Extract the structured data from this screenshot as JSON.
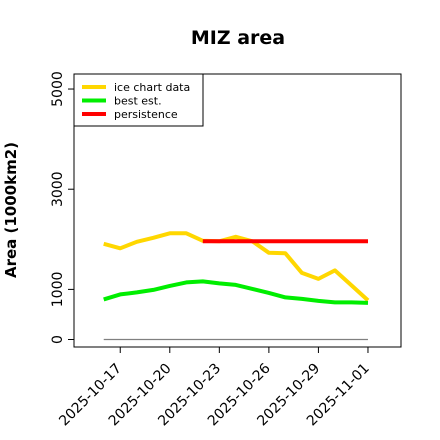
{
  "chart_data": {
    "type": "line",
    "title": "MIZ area",
    "ylabel": "Area (1000km2)",
    "xlabel": "",
    "x_tick_labels": [
      "2025-10-17",
      "2025-10-20",
      "2025-10-23",
      "2025-10-26",
      "2025-10-29",
      "2025-11-01"
    ],
    "x_tick_days": [
      17,
      20,
      23,
      26,
      29,
      32
    ],
    "y_ticks": [
      0,
      1000,
      3000,
      5000
    ],
    "ylim": [
      -150,
      5300
    ],
    "xlim": [
      14.2,
      34
    ],
    "grid": false,
    "legend_position": "top-left",
    "series": [
      {
        "name": "ice chart data",
        "color": "#FFD700",
        "x": [
          "2025-10-16",
          "2025-10-17",
          "2025-10-18",
          "2025-10-19",
          "2025-10-20",
          "2025-10-21",
          "2025-10-22",
          "2025-10-23",
          "2025-10-24",
          "2025-10-25",
          "2025-10-26",
          "2025-10-27",
          "2025-10-28",
          "2025-10-29",
          "2025-10-30",
          "2025-10-31",
          "2025-11-01"
        ],
        "values": [
          1910,
          1820,
          1950,
          2030,
          2120,
          2120,
          1970,
          1960,
          2050,
          1960,
          1730,
          1720,
          1330,
          1210,
          1380,
          1080,
          780
        ]
      },
      {
        "name": "best est.",
        "color": "#00EE00",
        "x": [
          "2025-10-16",
          "2025-10-17",
          "2025-10-18",
          "2025-10-19",
          "2025-10-20",
          "2025-10-21",
          "2025-10-22",
          "2025-10-23",
          "2025-10-24",
          "2025-10-25",
          "2025-10-26",
          "2025-10-27",
          "2025-10-28",
          "2025-10-29",
          "2025-10-30",
          "2025-10-31",
          "2025-11-01"
        ],
        "values": [
          800,
          900,
          940,
          990,
          1070,
          1140,
          1160,
          1120,
          1090,
          1010,
          930,
          840,
          810,
          770,
          740,
          740,
          730
        ]
      },
      {
        "name": "persistence",
        "color": "#FF0000",
        "x": [
          "2025-10-22",
          "2025-11-01"
        ],
        "values": [
          1960,
          1960
        ]
      }
    ],
    "reference_line": {
      "value": 0,
      "color": "#808080"
    }
  }
}
